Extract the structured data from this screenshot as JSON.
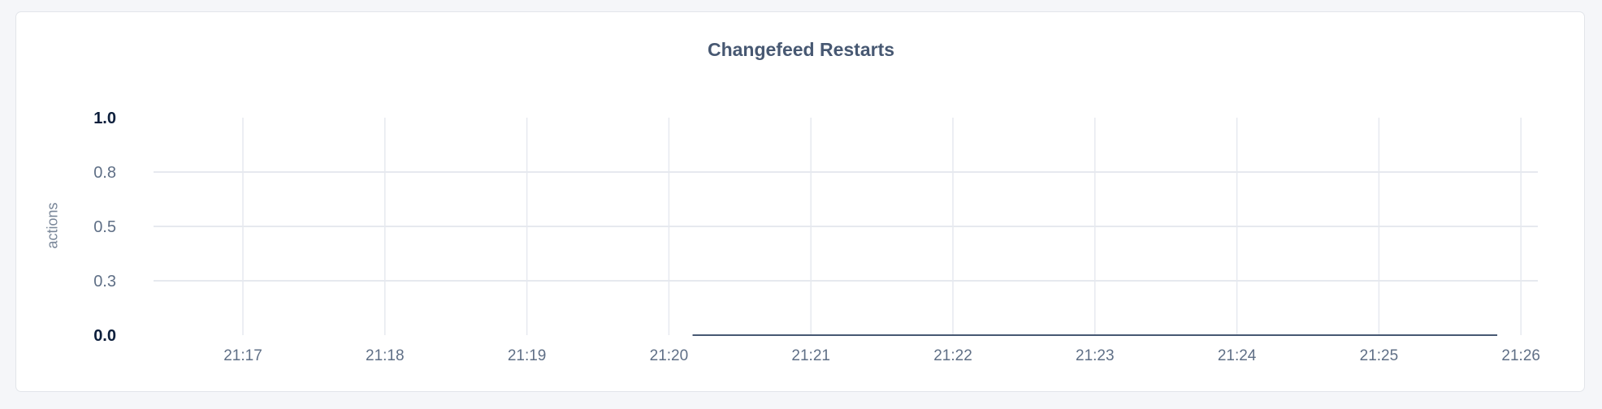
{
  "chart_data": {
    "type": "line",
    "title": "Changefeed Restarts",
    "ylabel": "actions",
    "xlabel": "",
    "ylim": [
      0,
      1
    ],
    "y_ticks": [
      {
        "value": 0,
        "label": "0.0",
        "emphasis": true
      },
      {
        "value": 0.25,
        "label": "0.3",
        "emphasis": false
      },
      {
        "value": 0.5,
        "label": "0.5",
        "emphasis": false
      },
      {
        "value": 0.75,
        "label": "0.8",
        "emphasis": false
      },
      {
        "value": 1,
        "label": "1.0",
        "emphasis": true
      }
    ],
    "x_ticks": [
      "21:17",
      "21:18",
      "21:19",
      "21:20",
      "21:21",
      "21:22",
      "21:23",
      "21:24",
      "21:25",
      "21:26"
    ],
    "xlim": [
      "21:16:15",
      "21:26:10"
    ],
    "grid": true,
    "series": [
      {
        "color": "#475872",
        "x": [
          "21:20:10",
          "21:25:50"
        ],
        "y": [
          0,
          0
        ]
      }
    ]
  }
}
